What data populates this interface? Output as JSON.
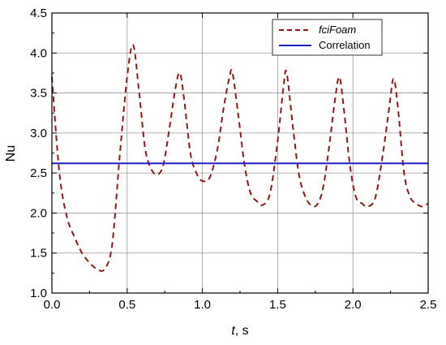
{
  "chart_data": {
    "type": "line",
    "xlabel_var": "t",
    "xlabel_unit": ", s",
    "ylabel": "Nu",
    "xlim": [
      0.0,
      2.5
    ],
    "ylim": [
      1.0,
      4.5
    ],
    "x_ticks": [
      "0.0",
      "0.5",
      "1.0",
      "1.5",
      "2.0",
      "2.5"
    ],
    "y_ticks": [
      "1.0",
      "1.5",
      "2.0",
      "2.5",
      "3.0",
      "3.5",
      "4.0",
      "4.5"
    ],
    "grid": true,
    "legend_position": "top-right",
    "series": [
      {
        "name": "fciFoam",
        "style": "dashed",
        "color": "#8b1a10",
        "x": [
          0.0,
          0.05,
          0.1,
          0.15,
          0.2,
          0.25,
          0.3,
          0.35,
          0.4,
          0.45,
          0.5,
          0.54,
          0.58,
          0.62,
          0.66,
          0.7,
          0.74,
          0.78,
          0.82,
          0.85,
          0.88,
          0.92,
          0.96,
          1.0,
          1.05,
          1.1,
          1.14,
          1.18,
          1.2,
          1.24,
          1.28,
          1.32,
          1.36,
          1.4,
          1.45,
          1.5,
          1.54,
          1.56,
          1.6,
          1.64,
          1.68,
          1.72,
          1.76,
          1.8,
          1.84,
          1.88,
          1.91,
          1.94,
          1.98,
          2.02,
          2.06,
          2.1,
          2.15,
          2.2,
          2.24,
          2.27,
          2.3,
          2.34,
          2.38,
          2.42,
          2.46,
          2.5
        ],
        "y": [
          3.7,
          2.5,
          1.95,
          1.7,
          1.5,
          1.38,
          1.3,
          1.3,
          1.6,
          2.7,
          3.7,
          4.1,
          3.5,
          2.8,
          2.55,
          2.48,
          2.6,
          3.05,
          3.55,
          3.75,
          3.4,
          2.75,
          2.5,
          2.4,
          2.45,
          2.8,
          3.3,
          3.7,
          3.75,
          3.2,
          2.6,
          2.25,
          2.15,
          2.1,
          2.25,
          2.9,
          3.6,
          3.75,
          3.1,
          2.5,
          2.22,
          2.1,
          2.1,
          2.3,
          2.8,
          3.4,
          3.7,
          3.3,
          2.6,
          2.2,
          2.12,
          2.08,
          2.2,
          2.75,
          3.3,
          3.68,
          3.3,
          2.5,
          2.2,
          2.12,
          2.08,
          2.12
        ]
      },
      {
        "name": "Correlation",
        "style": "solid",
        "color": "#1f1fc8",
        "x": [
          0.0,
          2.5
        ],
        "y": [
          2.62,
          2.62
        ]
      }
    ]
  }
}
